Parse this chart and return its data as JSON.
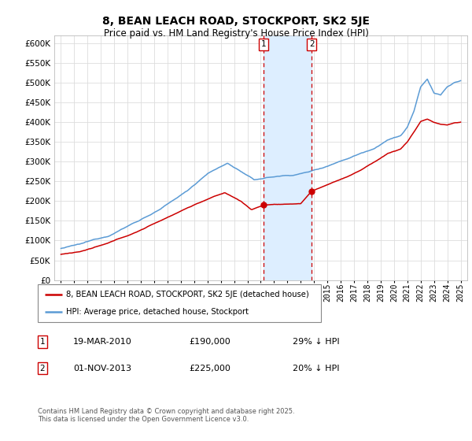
{
  "title": "8, BEAN LEACH ROAD, STOCKPORT, SK2 5JE",
  "subtitle": "Price paid vs. HM Land Registry's House Price Index (HPI)",
  "hpi_label": "HPI: Average price, detached house, Stockport",
  "house_label": "8, BEAN LEACH ROAD, STOCKPORT, SK2 5JE (detached house)",
  "footer": "Contains HM Land Registry data © Crown copyright and database right 2025.\nThis data is licensed under the Open Government Licence v3.0.",
  "sale1_date": "19-MAR-2010",
  "sale1_price": 190000,
  "sale1_pct": "29% ↓ HPI",
  "sale1_x": 2010.21,
  "sale1_y": 190000,
  "sale2_date": "01-NOV-2013",
  "sale2_price": 225000,
  "sale2_pct": "20% ↓ HPI",
  "sale2_x": 2013.83,
  "sale2_y": 225000,
  "hpi_color": "#5b9bd5",
  "house_color": "#cc0000",
  "sale_vline_color": "#cc0000",
  "span_color": "#ddeeff",
  "ylim": [
    0,
    620000
  ],
  "xlim": [
    1994.5,
    2025.5
  ],
  "yticks": [
    0,
    50000,
    100000,
    150000,
    200000,
    250000,
    300000,
    350000,
    400000,
    450000,
    500000,
    550000,
    600000
  ],
  "xticks": [
    1995,
    1996,
    1997,
    1998,
    1999,
    2000,
    2001,
    2002,
    2003,
    2004,
    2005,
    2006,
    2007,
    2008,
    2009,
    2010,
    2011,
    2012,
    2013,
    2014,
    2015,
    2016,
    2017,
    2018,
    2019,
    2020,
    2021,
    2022,
    2023,
    2024,
    2025
  ],
  "background_color": "#ffffff",
  "grid_color": "#dddddd",
  "title_fontsize": 10,
  "subtitle_fontsize": 8.5
}
